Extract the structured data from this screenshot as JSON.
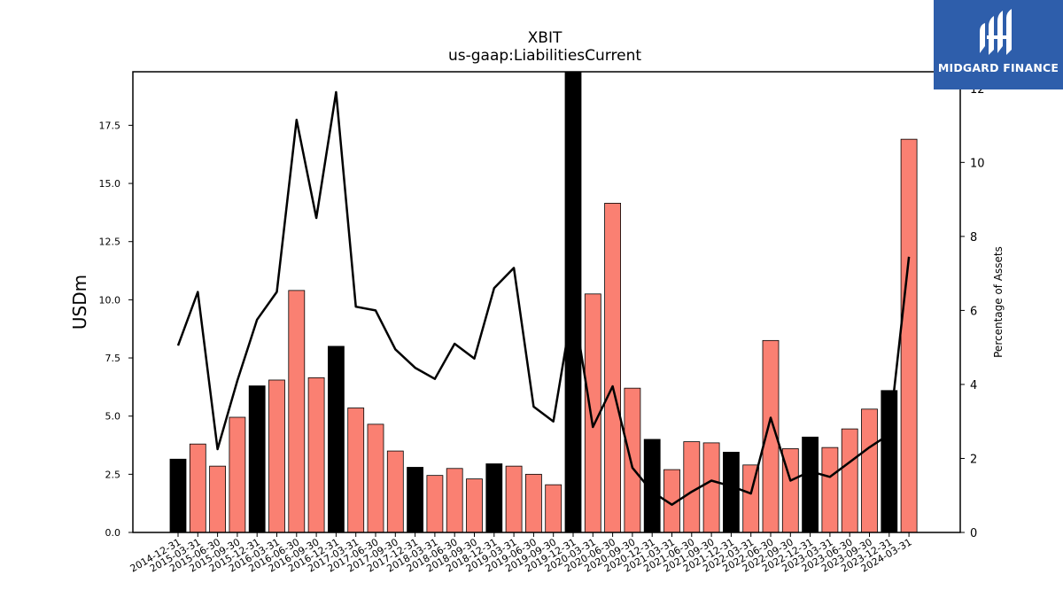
{
  "chart_data": {
    "type": "bar",
    "title": "XBIT",
    "subtitle": "us-gaap:LiabilitiesCurrent",
    "ylabel": "USDm",
    "y2label": "Percentage of Assets",
    "ylim": [
      0,
      19.8
    ],
    "y2lim": [
      0,
      12.45
    ],
    "yticks": [
      "0.0",
      "2.5",
      "5.0",
      "7.5",
      "10.0",
      "12.5",
      "15.0",
      "17.5"
    ],
    "y2ticks": [
      "0",
      "2",
      "4",
      "6",
      "8",
      "10",
      "12"
    ],
    "categories": [
      "2014-12-31",
      "2015-03-31",
      "2015-06-30",
      "2015-09-30",
      "2015-12-31",
      "2016-03-31",
      "2016-06-30",
      "2016-09-30",
      "2016-12-31",
      "2017-03-31",
      "2017-06-30",
      "2017-09-30",
      "2017-12-31",
      "2018-03-31",
      "2018-06-30",
      "2018-09-30",
      "2018-12-31",
      "2019-03-31",
      "2019-06-30",
      "2019-09-30",
      "2019-12-31",
      "2020-03-31",
      "2020-06-30",
      "2020-09-30",
      "2020-12-31",
      "2021-03-31",
      "2021-06-30",
      "2021-09-30",
      "2021-12-31",
      "2022-03-31",
      "2022-06-30",
      "2022-09-30",
      "2022-12-31",
      "2023-03-31",
      "2023-06-30",
      "2023-09-30",
      "2023-12-31",
      "2024-03-31"
    ],
    "series": [
      {
        "kind": "bar",
        "values": [
          3.15,
          3.8,
          2.85,
          4.95,
          6.3,
          6.55,
          10.4,
          6.65,
          8.0,
          5.35,
          4.65,
          3.5,
          2.8,
          2.45,
          2.75,
          2.3,
          2.95,
          2.85,
          2.5,
          2.05,
          19.8,
          10.25,
          14.15,
          6.2,
          4.0,
          2.7,
          3.9,
          3.85,
          3.45,
          2.9,
          8.25,
          3.6,
          4.1,
          3.65,
          4.45,
          5.3,
          6.1,
          16.9
        ],
        "year_end_color": "#000000",
        "other_color": "#fa8072"
      },
      {
        "kind": "line",
        "axis": "secondary",
        "color": "#000000",
        "values": [
          5.05,
          6.5,
          2.25,
          4.1,
          5.75,
          6.5,
          11.15,
          8.5,
          11.9,
          6.1,
          6.0,
          4.95,
          4.45,
          4.15,
          5.1,
          4.7,
          6.6,
          7.15,
          3.4,
          3.0,
          6.2,
          2.85,
          3.95,
          1.75,
          1.1,
          0.75,
          1.1,
          1.4,
          1.25,
          1.05,
          3.1,
          1.4,
          1.65,
          1.5,
          1.9,
          2.3,
          2.65,
          7.45
        ]
      }
    ]
  },
  "logo": {
    "text": "MIDGARD FINANCE",
    "bg_color": "#2e5eab"
  }
}
